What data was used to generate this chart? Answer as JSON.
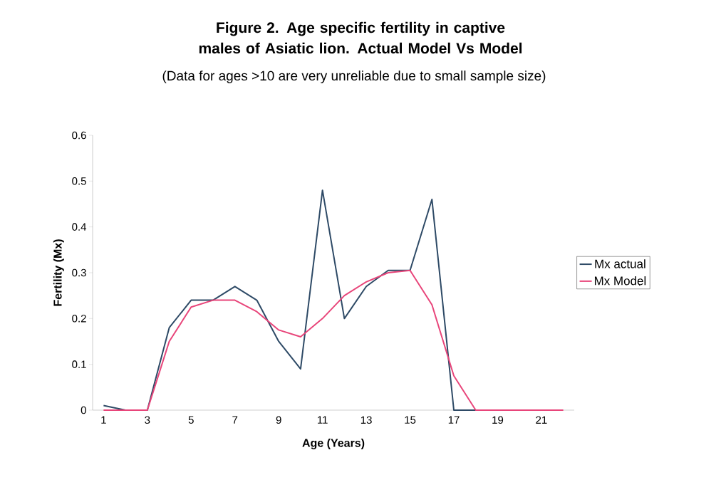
{
  "chart_data": {
    "type": "line",
    "title": "Figure 2. Age specific fertility in captive males of Asiatic lion. Actual Model Vs Model",
    "subtitle": "(Data for ages >10 are very unreliable due to small sample size)",
    "xlabel": "Age (Years)",
    "ylabel": "Fertility (Mx)",
    "categories": [
      "1",
      null,
      "3",
      null,
      "5",
      null,
      "7",
      null,
      "9",
      null,
      "11",
      null,
      "13",
      null,
      "15",
      null,
      "17",
      null,
      "19",
      null,
      "21",
      null
    ],
    "series": [
      {
        "name": "Mx actual",
        "color": "#2e4a66",
        "values": [
          0.01,
          0,
          0,
          0.18,
          0.24,
          0.24,
          0.27,
          0.24,
          0.15,
          0.09,
          0.48,
          0.2,
          0.27,
          0.305,
          0.305,
          0.46,
          0,
          0,
          null,
          null,
          null,
          null
        ]
      },
      {
        "name": "Mx Model",
        "color": "#e8457a",
        "values": [
          0,
          0,
          0,
          0.15,
          0.225,
          0.24,
          0.24,
          0.215,
          0.175,
          0.16,
          0.2,
          0.25,
          0.28,
          0.3,
          0.305,
          0.23,
          0.075,
          0,
          0,
          0,
          0,
          0
        ]
      }
    ],
    "ylim": [
      0,
      0.6
    ],
    "yticks": [
      0,
      0.1,
      0.2,
      0.3,
      0.4,
      0.5,
      0.6
    ],
    "legend": "right",
    "grid": false,
    "marker": "none",
    "line_style": "solid"
  }
}
